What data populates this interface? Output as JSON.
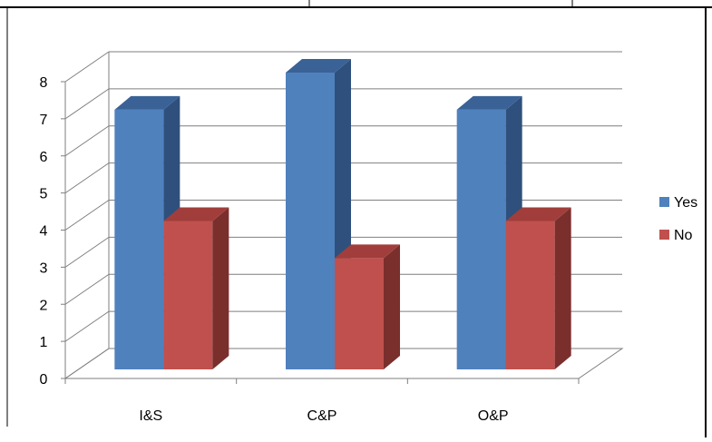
{
  "chart_data": {
    "type": "bar",
    "style": "3d-clustered-column",
    "categories": [
      "I&S",
      "C&P",
      "O&P"
    ],
    "series": [
      {
        "name": "Yes",
        "values": [
          7,
          8,
          7
        ],
        "color": "#4F81BD",
        "side_color": "#2F507C",
        "top_color": "#3A6296"
      },
      {
        "name": "No",
        "values": [
          4,
          3,
          4
        ],
        "color": "#C0504D",
        "side_color": "#7A2F2D",
        "top_color": "#A13E3B"
      }
    ],
    "ylim": [
      0,
      8
    ],
    "yticks": [
      "0",
      "1",
      "2",
      "3",
      "4",
      "5",
      "6",
      "7",
      "8"
    ],
    "grid": true,
    "legend_position": "right",
    "title": "",
    "xlabel": "",
    "ylabel": ""
  }
}
